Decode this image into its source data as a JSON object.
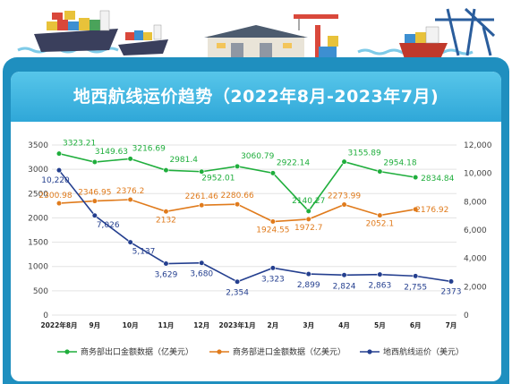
{
  "page": {
    "title": "地西航线运价趋势（2022年8月-2023年7月)"
  },
  "chart_data": {
    "type": "line",
    "categories": [
      "2022年8月",
      "9月",
      "10月",
      "11月",
      "12月",
      "2023年1月",
      "2月",
      "3月",
      "4月",
      "5月",
      "6月",
      "7月"
    ],
    "left_axis": {
      "min": 0,
      "max": 3500,
      "ticks": [
        0,
        500,
        1000,
        1500,
        2000,
        2500,
        3000,
        3500
      ]
    },
    "right_axis": {
      "min": 0,
      "max": 12000,
      "ticks": [
        0,
        2000,
        4000,
        6000,
        8000,
        10000,
        12000
      ],
      "tick_labels": [
        "0",
        "2,000",
        "4,000",
        "6,000",
        "8,000",
        "10,000",
        "12,000"
      ]
    },
    "grid": true,
    "legend_position": "bottom",
    "series": [
      {
        "name": "商务部出口金额数据（亿美元）",
        "axis": "left",
        "color": "#1fae3c",
        "values": [
          3323.21,
          3149.63,
          3216.69,
          2981.4,
          2952.01,
          3060.79,
          2922.14,
          2140.27,
          3155.89,
          2954.18,
          2834.84,
          null
        ],
        "labels": [
          "3323.21",
          "3149.63",
          "3216.69",
          "2981.4",
          "2952.01",
          "3060.79",
          "2922.14",
          "2140.27",
          "3155.89",
          "2954.18",
          "2834.84",
          ""
        ]
      },
      {
        "name": "商务部进口金额数据（亿美元）",
        "axis": "left",
        "color": "#e07b1c",
        "values": [
          2300.98,
          2346.95,
          2376.2,
          2132,
          2261.46,
          2280.66,
          1924.55,
          1972.7,
          2273.99,
          2052.1,
          2176.92,
          null
        ],
        "labels": [
          "2300.98",
          "2346.95",
          "2376.2",
          "2132",
          "2261.46",
          "2280.66",
          "1924.55",
          "1972.7",
          "2273.99",
          "2052.1",
          "2176.92",
          ""
        ]
      },
      {
        "name": "地西航线运价（美元）",
        "axis": "right",
        "color": "#243f8f",
        "values": [
          10220,
          7026,
          5137,
          3629,
          3680,
          2354,
          3323,
          2899,
          2824,
          2863,
          2755,
          2373
        ],
        "labels": [
          "10,220",
          "7,026",
          "5,137",
          "3,629",
          "3,680",
          "2,354",
          "3,323",
          "2,899",
          "2,824",
          "2,863",
          "2,755",
          "2373"
        ]
      }
    ]
  }
}
